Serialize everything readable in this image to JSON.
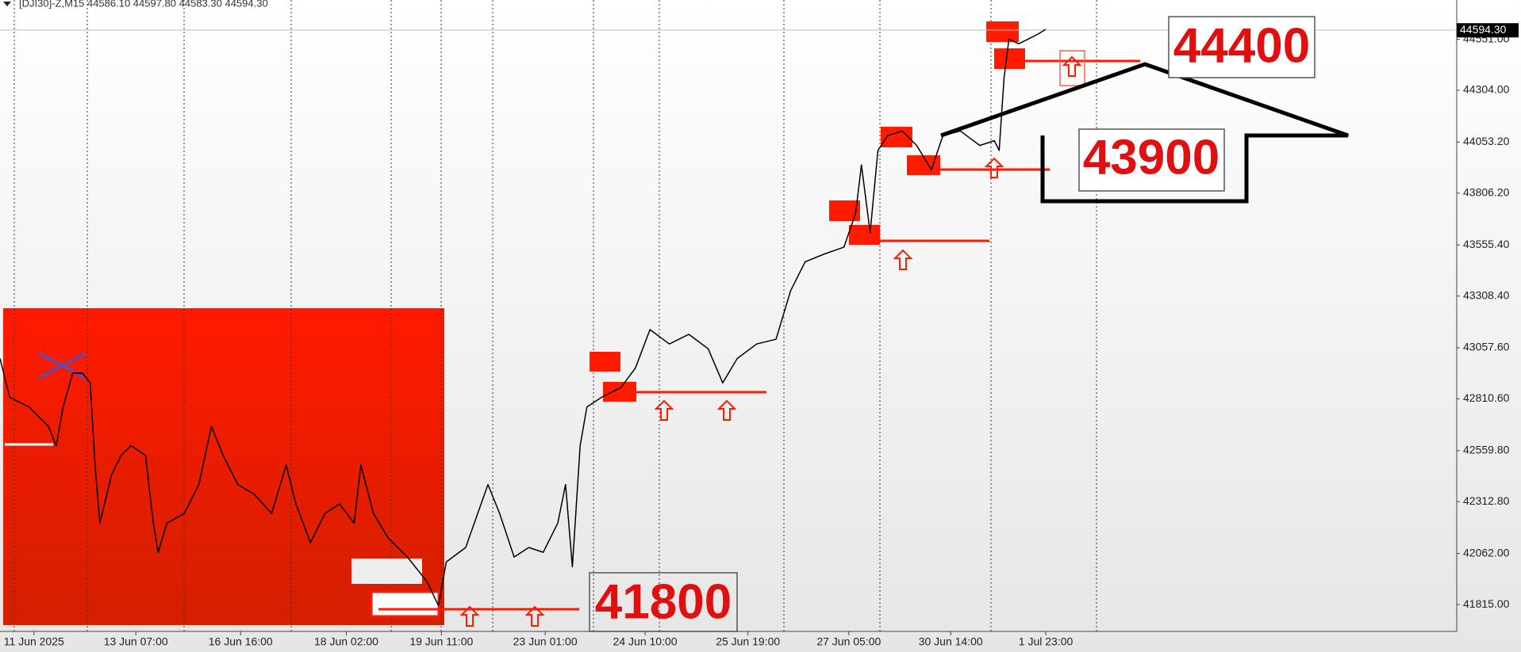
{
  "chart_data": {
    "type": "line",
    "title": "[DJI30]-Z,M15  44586.10 44597.80 44583.30 44594.30",
    "xlim": [
      0,
      1500
    ],
    "xticks": [
      {
        "value": 35,
        "label": "11 Jun 2025"
      },
      {
        "value": 140,
        "label": "13 Jun 07:00"
      },
      {
        "value": 248,
        "label": "16 Jun 16:00"
      },
      {
        "value": 357,
        "label": "18 Jun 02:00"
      },
      {
        "value": 455,
        "label": "19 Jun 11:00"
      },
      {
        "value": 562,
        "label": "23 Jun 01:00"
      },
      {
        "value": 665,
        "label": "24 Jun 10:00"
      },
      {
        "value": 771,
        "label": "25 Jun 19:00"
      },
      {
        "value": 875,
        "label": "27 Jun 05:00"
      },
      {
        "value": 980,
        "label": "30 Jun 14:00"
      },
      {
        "value": 1078,
        "label": "1 Jul 23:00"
      }
    ],
    "ylim": [
      41685,
      44741
    ],
    "yticks": [
      {
        "value": 41815,
        "label": "41815.00"
      },
      {
        "value": 42062,
        "label": "42062.00"
      },
      {
        "value": 42312.8,
        "label": "42312.80"
      },
      {
        "value": 42559.8,
        "label": "42559.80"
      },
      {
        "value": 42810.6,
        "label": "42810.60"
      },
      {
        "value": 43057.6,
        "label": "43057.60"
      },
      {
        "value": 43308.4,
        "label": "43308.40"
      },
      {
        "value": 43555.4,
        "label": "43555.40"
      },
      {
        "value": 43806.2,
        "label": "43806.20"
      },
      {
        "value": 44053.2,
        "label": "44053.20"
      },
      {
        "value": 44304,
        "label": "44304.00"
      },
      {
        "value": 44551,
        "label": "44551.00"
      }
    ],
    "current_price": {
      "value": 44594.3,
      "label": "44594.30"
    },
    "series": [
      {
        "name": "DJI30",
        "color": "#000000",
        "x": [
          0,
          10,
          30,
          50,
          58,
          65,
          75,
          85,
          93,
          98,
          103,
          115,
          125,
          135,
          150,
          158,
          163,
          172,
          190,
          205,
          218,
          230,
          245,
          262,
          280,
          295,
          305,
          320,
          335,
          350,
          365,
          372,
          385,
          400,
          420,
          440,
          452,
          460,
          480,
          503,
          515,
          530,
          545,
          560,
          575,
          583,
          590,
          598,
          605,
          620,
          640,
          655,
          670,
          690,
          710,
          730,
          745,
          760,
          780,
          800,
          815,
          830,
          850,
          870,
          882,
          888,
          897,
          905,
          915,
          930,
          945,
          960,
          972,
          990,
          1010,
          1025,
          1030,
          1035,
          1040,
          1050,
          1060,
          1070,
          1078
        ],
        "values": [
          43006,
          42818,
          42771,
          42677,
          42584,
          42771,
          42935,
          42935,
          42888,
          42490,
          42209,
          42443,
          42537,
          42584,
          42537,
          42209,
          42068,
          42209,
          42256,
          42396,
          42677,
          42537,
          42396,
          42349,
          42256,
          42490,
          42302,
          42115,
          42256,
          42302,
          42209,
          42490,
          42256,
          42138,
          42045,
          41927,
          41810,
          42021,
          42091,
          42396,
          42256,
          42045,
          42091,
          42068,
          42209,
          42396,
          41998,
          42584,
          42771,
          42818,
          42865,
          42959,
          43146,
          43076,
          43123,
          43053,
          42888,
          43006,
          43076,
          43099,
          43334,
          43474,
          43512,
          43545,
          43709,
          43943,
          43615,
          44013,
          44084,
          44107,
          44037,
          43919,
          44084,
          44107,
          44037,
          44060,
          44013,
          44365,
          44552,
          44529,
          44552,
          44576,
          44599
        ]
      }
    ],
    "annotations": [
      "44400",
      "43900",
      "41800"
    ]
  }
}
